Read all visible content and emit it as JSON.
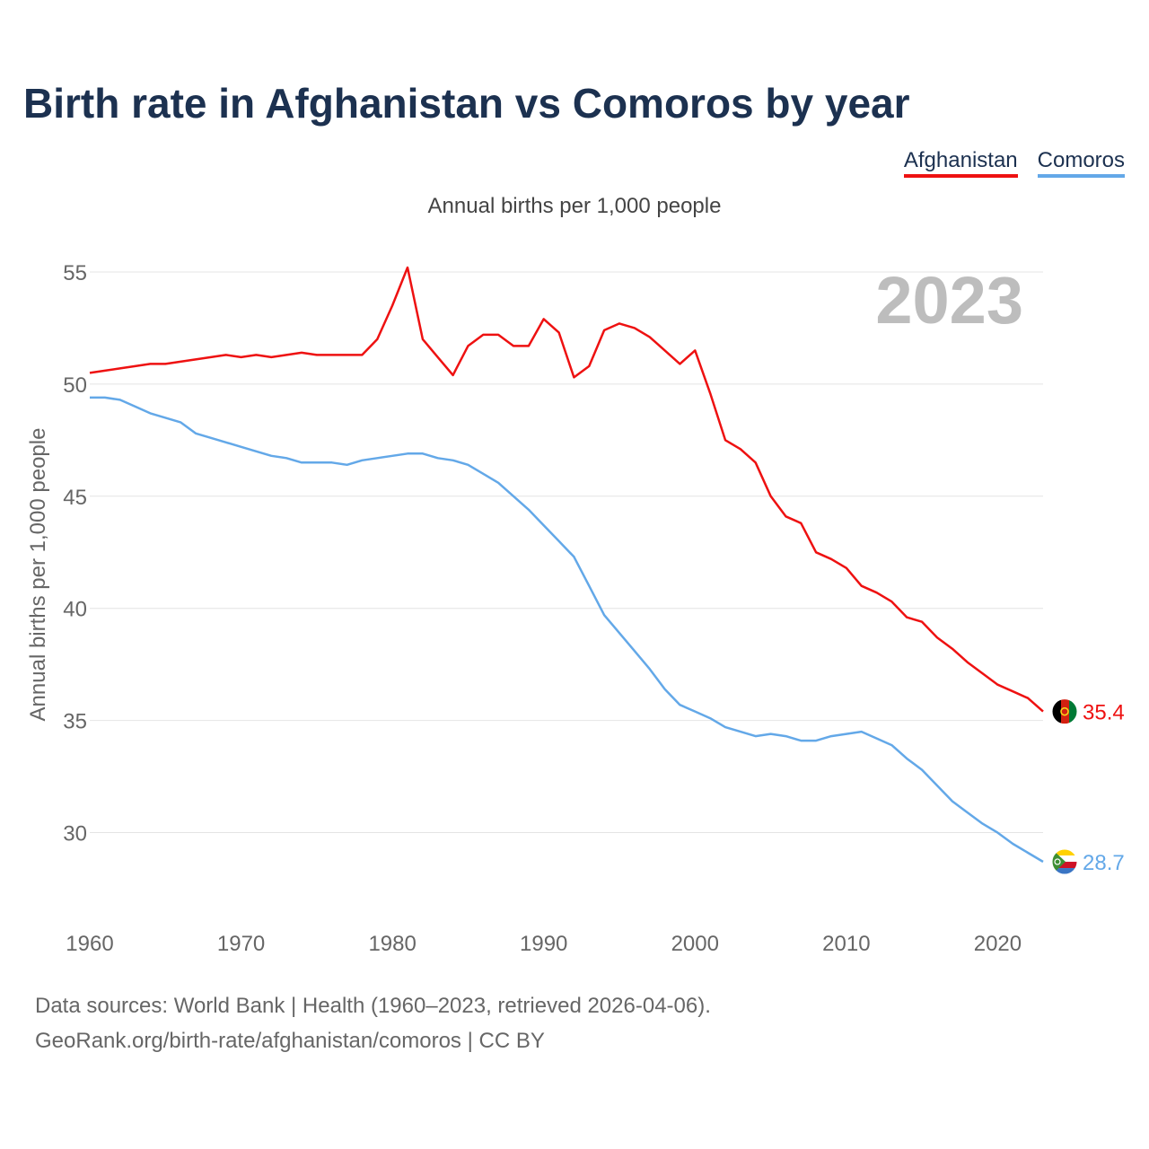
{
  "title": "Birth rate in Afghanistan vs Comoros by year",
  "legend": [
    {
      "label": "Afghanistan",
      "color": "#ee1111"
    },
    {
      "label": "Comoros",
      "color": "#63a8e8"
    }
  ],
  "subtitle": "Annual births per 1,000 people",
  "year_watermark": "2023",
  "source_line1": "Data sources: World Bank | Health (1960–2023, retrieved 2026-04-06).",
  "source_line2": "GeoRank.org/birth-rate/afghanistan/comoros | CC BY",
  "chart_data": {
    "type": "line",
    "title": "Birth rate in Afghanistan vs Comoros by year",
    "xlabel": "",
    "ylabel": "Annual births per 1,000 people",
    "xlim": [
      1960,
      2023
    ],
    "ylim": [
      26.5,
      57
    ],
    "x_ticks": [
      1960,
      1970,
      1980,
      1990,
      2000,
      2010,
      2020
    ],
    "y_ticks": [
      30,
      35,
      40,
      45,
      50,
      55
    ],
    "grid": true,
    "legend_position": "top-right",
    "x": [
      1960,
      1961,
      1962,
      1963,
      1964,
      1965,
      1966,
      1967,
      1968,
      1969,
      1970,
      1971,
      1972,
      1973,
      1974,
      1975,
      1976,
      1977,
      1978,
      1979,
      1980,
      1981,
      1982,
      1983,
      1984,
      1985,
      1986,
      1987,
      1988,
      1989,
      1990,
      1991,
      1992,
      1993,
      1994,
      1995,
      1996,
      1997,
      1998,
      1999,
      2000,
      2001,
      2002,
      2003,
      2004,
      2005,
      2006,
      2007,
      2008,
      2009,
      2010,
      2011,
      2012,
      2013,
      2014,
      2015,
      2016,
      2017,
      2018,
      2019,
      2020,
      2021,
      2022,
      2023
    ],
    "series": [
      {
        "name": "Afghanistan",
        "color": "#ee1111",
        "end_label": "35.4",
        "values": [
          50.5,
          50.6,
          50.7,
          50.8,
          50.9,
          50.9,
          51.0,
          51.1,
          51.2,
          51.3,
          51.2,
          51.3,
          51.2,
          51.3,
          51.4,
          51.3,
          51.3,
          51.3,
          51.3,
          52.0,
          53.5,
          55.2,
          52.0,
          51.2,
          50.4,
          51.7,
          52.2,
          52.2,
          51.7,
          51.7,
          52.9,
          52.3,
          50.3,
          50.8,
          52.4,
          52.7,
          52.5,
          52.1,
          51.5,
          50.9,
          51.5,
          49.6,
          47.5,
          47.1,
          46.5,
          45.0,
          44.1,
          43.8,
          42.5,
          42.2,
          41.8,
          41.0,
          40.7,
          40.3,
          39.6,
          39.4,
          38.7,
          38.2,
          37.6,
          37.1,
          36.6,
          36.3,
          36.0,
          35.4
        ]
      },
      {
        "name": "Comoros",
        "color": "#63a8e8",
        "end_label": "28.7",
        "values": [
          49.4,
          49.4,
          49.3,
          49.0,
          48.7,
          48.5,
          48.3,
          47.8,
          47.6,
          47.4,
          47.2,
          47.0,
          46.8,
          46.7,
          46.5,
          46.5,
          46.5,
          46.4,
          46.6,
          46.7,
          46.8,
          46.9,
          46.9,
          46.7,
          46.6,
          46.4,
          46.0,
          45.6,
          45.0,
          44.4,
          43.7,
          43.0,
          42.3,
          41.0,
          39.7,
          38.9,
          38.1,
          37.3,
          36.4,
          35.7,
          35.4,
          35.1,
          34.7,
          34.5,
          34.3,
          34.4,
          34.3,
          34.1,
          34.1,
          34.3,
          34.4,
          34.5,
          34.2,
          33.9,
          33.3,
          32.8,
          32.1,
          31.4,
          30.9,
          30.4,
          30.0,
          29.5,
          29.1,
          28.7
        ]
      }
    ]
  }
}
